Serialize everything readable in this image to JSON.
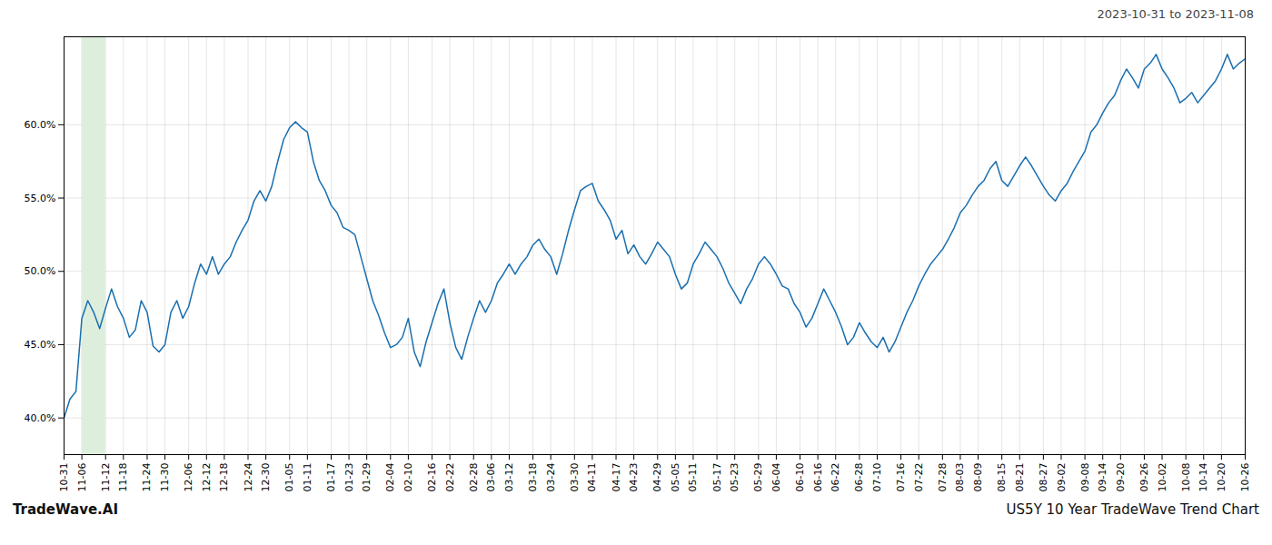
{
  "chart_data": {
    "type": "line",
    "annotations": [
      "2023-10-31 to 2023-11-08",
      "TradeWave.AI",
      "US5Y 10 Year TradeWave Trend Chart"
    ],
    "color": "#1a6faf",
    "grid": true,
    "ylim": [
      0.375,
      0.66
    ],
    "yticks": [
      {
        "value": 0.4,
        "label": "40.0%"
      },
      {
        "value": 0.45,
        "label": "45.0%"
      },
      {
        "value": 0.5,
        "label": "50.0%"
      },
      {
        "value": 0.55,
        "label": "55.0%"
      },
      {
        "value": 0.6,
        "label": "60.0%"
      }
    ],
    "highlight": {
      "start": "11-06",
      "end": "11-12",
      "color": "#ddeedd"
    },
    "categories": [
      "10-31",
      null,
      null,
      "11-06",
      null,
      null,
      null,
      "11-12",
      null,
      null,
      "11-18",
      null,
      null,
      null,
      "11-24",
      null,
      null,
      "11-30",
      null,
      null,
      null,
      "12-06",
      null,
      null,
      "12-12",
      null,
      null,
      "12-18",
      null,
      null,
      null,
      "12-24",
      null,
      null,
      "12-30",
      null,
      null,
      null,
      "01-05",
      null,
      null,
      "01-11",
      null,
      null,
      null,
      "01-17",
      null,
      null,
      "01-23",
      null,
      null,
      "01-29",
      null,
      null,
      null,
      "02-04",
      null,
      null,
      "02-10",
      null,
      null,
      null,
      "02-16",
      null,
      null,
      "02-22",
      null,
      null,
      null,
      "02-28",
      null,
      null,
      "03-06",
      null,
      null,
      "03-12",
      null,
      null,
      null,
      "03-18",
      null,
      null,
      "03-24",
      null,
      null,
      null,
      "03-30",
      null,
      null,
      "04-11",
      null,
      null,
      null,
      "04-17",
      null,
      null,
      "04-23",
      null,
      null,
      null,
      "04-29",
      null,
      null,
      "05-05",
      null,
      null,
      "05-11",
      null,
      null,
      null,
      "05-17",
      null,
      null,
      "05-23",
      null,
      null,
      null,
      "05-29",
      null,
      null,
      "06-04",
      null,
      null,
      null,
      "06-10",
      null,
      null,
      "06-16",
      null,
      null,
      "06-22",
      null,
      null,
      null,
      "06-28",
      null,
      null,
      "07-10",
      null,
      null,
      null,
      "07-16",
      null,
      null,
      "07-22",
      null,
      null,
      null,
      "07-28",
      null,
      null,
      "08-03",
      null,
      null,
      "08-09",
      null,
      null,
      null,
      "08-15",
      null,
      null,
      "08-21",
      null,
      null,
      null,
      "08-27",
      null,
      null,
      "09-02",
      null,
      null,
      null,
      "09-08",
      null,
      null,
      "09-14",
      null,
      null,
      "09-20",
      null,
      null,
      null,
      "09-26",
      null,
      null,
      "10-02",
      null,
      null,
      null,
      "10-08",
      null,
      null,
      "10-14",
      null,
      null,
      "10-20",
      null,
      null,
      null,
      "10-26"
    ],
    "values": [
      0.4,
      0.413,
      0.418,
      0.468,
      0.48,
      0.472,
      0.461,
      0.475,
      0.488,
      0.476,
      0.468,
      0.455,
      0.46,
      0.48,
      0.472,
      0.449,
      0.445,
      0.45,
      0.472,
      0.48,
      0.468,
      0.476,
      0.492,
      0.505,
      0.498,
      0.51,
      0.498,
      0.505,
      0.51,
      0.52,
      0.528,
      0.535,
      0.548,
      0.555,
      0.548,
      0.558,
      0.575,
      0.59,
      0.598,
      0.602,
      0.598,
      0.595,
      0.575,
      0.562,
      0.555,
      0.545,
      0.54,
      0.53,
      0.528,
      0.525,
      0.51,
      0.495,
      0.48,
      0.47,
      0.458,
      0.448,
      0.45,
      0.455,
      0.468,
      0.445,
      0.435,
      0.452,
      0.465,
      0.478,
      0.488,
      0.465,
      0.448,
      0.44,
      0.455,
      0.468,
      0.48,
      0.472,
      0.48,
      0.492,
      0.498,
      0.505,
      0.498,
      0.505,
      0.51,
      0.518,
      0.522,
      0.515,
      0.51,
      0.498,
      0.512,
      0.528,
      0.542,
      0.555,
      0.558,
      0.56,
      0.548,
      0.542,
      0.535,
      0.522,
      0.528,
      0.512,
      0.518,
      0.51,
      0.505,
      0.512,
      0.52,
      0.515,
      0.51,
      0.498,
      0.488,
      0.492,
      0.505,
      0.512,
      0.52,
      0.515,
      0.51,
      0.502,
      0.492,
      0.485,
      0.478,
      0.488,
      0.495,
      0.505,
      0.51,
      0.505,
      0.498,
      0.49,
      0.488,
      0.478,
      0.472,
      0.462,
      0.468,
      0.478,
      0.488,
      0.48,
      0.472,
      0.462,
      0.45,
      0.455,
      0.465,
      0.458,
      0.452,
      0.448,
      0.455,
      0.445,
      0.452,
      0.462,
      0.472,
      0.48,
      0.49,
      0.498,
      0.505,
      0.51,
      0.515,
      0.522,
      0.53,
      0.54,
      0.545,
      0.552,
      0.558,
      0.562,
      0.57,
      0.575,
      0.562,
      0.558,
      0.565,
      0.572,
      0.578,
      0.572,
      0.565,
      0.558,
      0.552,
      0.548,
      0.555,
      0.56,
      0.568,
      0.575,
      0.582,
      0.595,
      0.6,
      0.608,
      0.615,
      0.62,
      0.63,
      0.638,
      0.632,
      0.625,
      0.638,
      0.642,
      0.648,
      0.638,
      0.632,
      0.625,
      0.615,
      0.618,
      0.622,
      0.615,
      0.62,
      0.625,
      0.63,
      0.638,
      0.648,
      0.638,
      0.642,
      0.645
    ]
  }
}
